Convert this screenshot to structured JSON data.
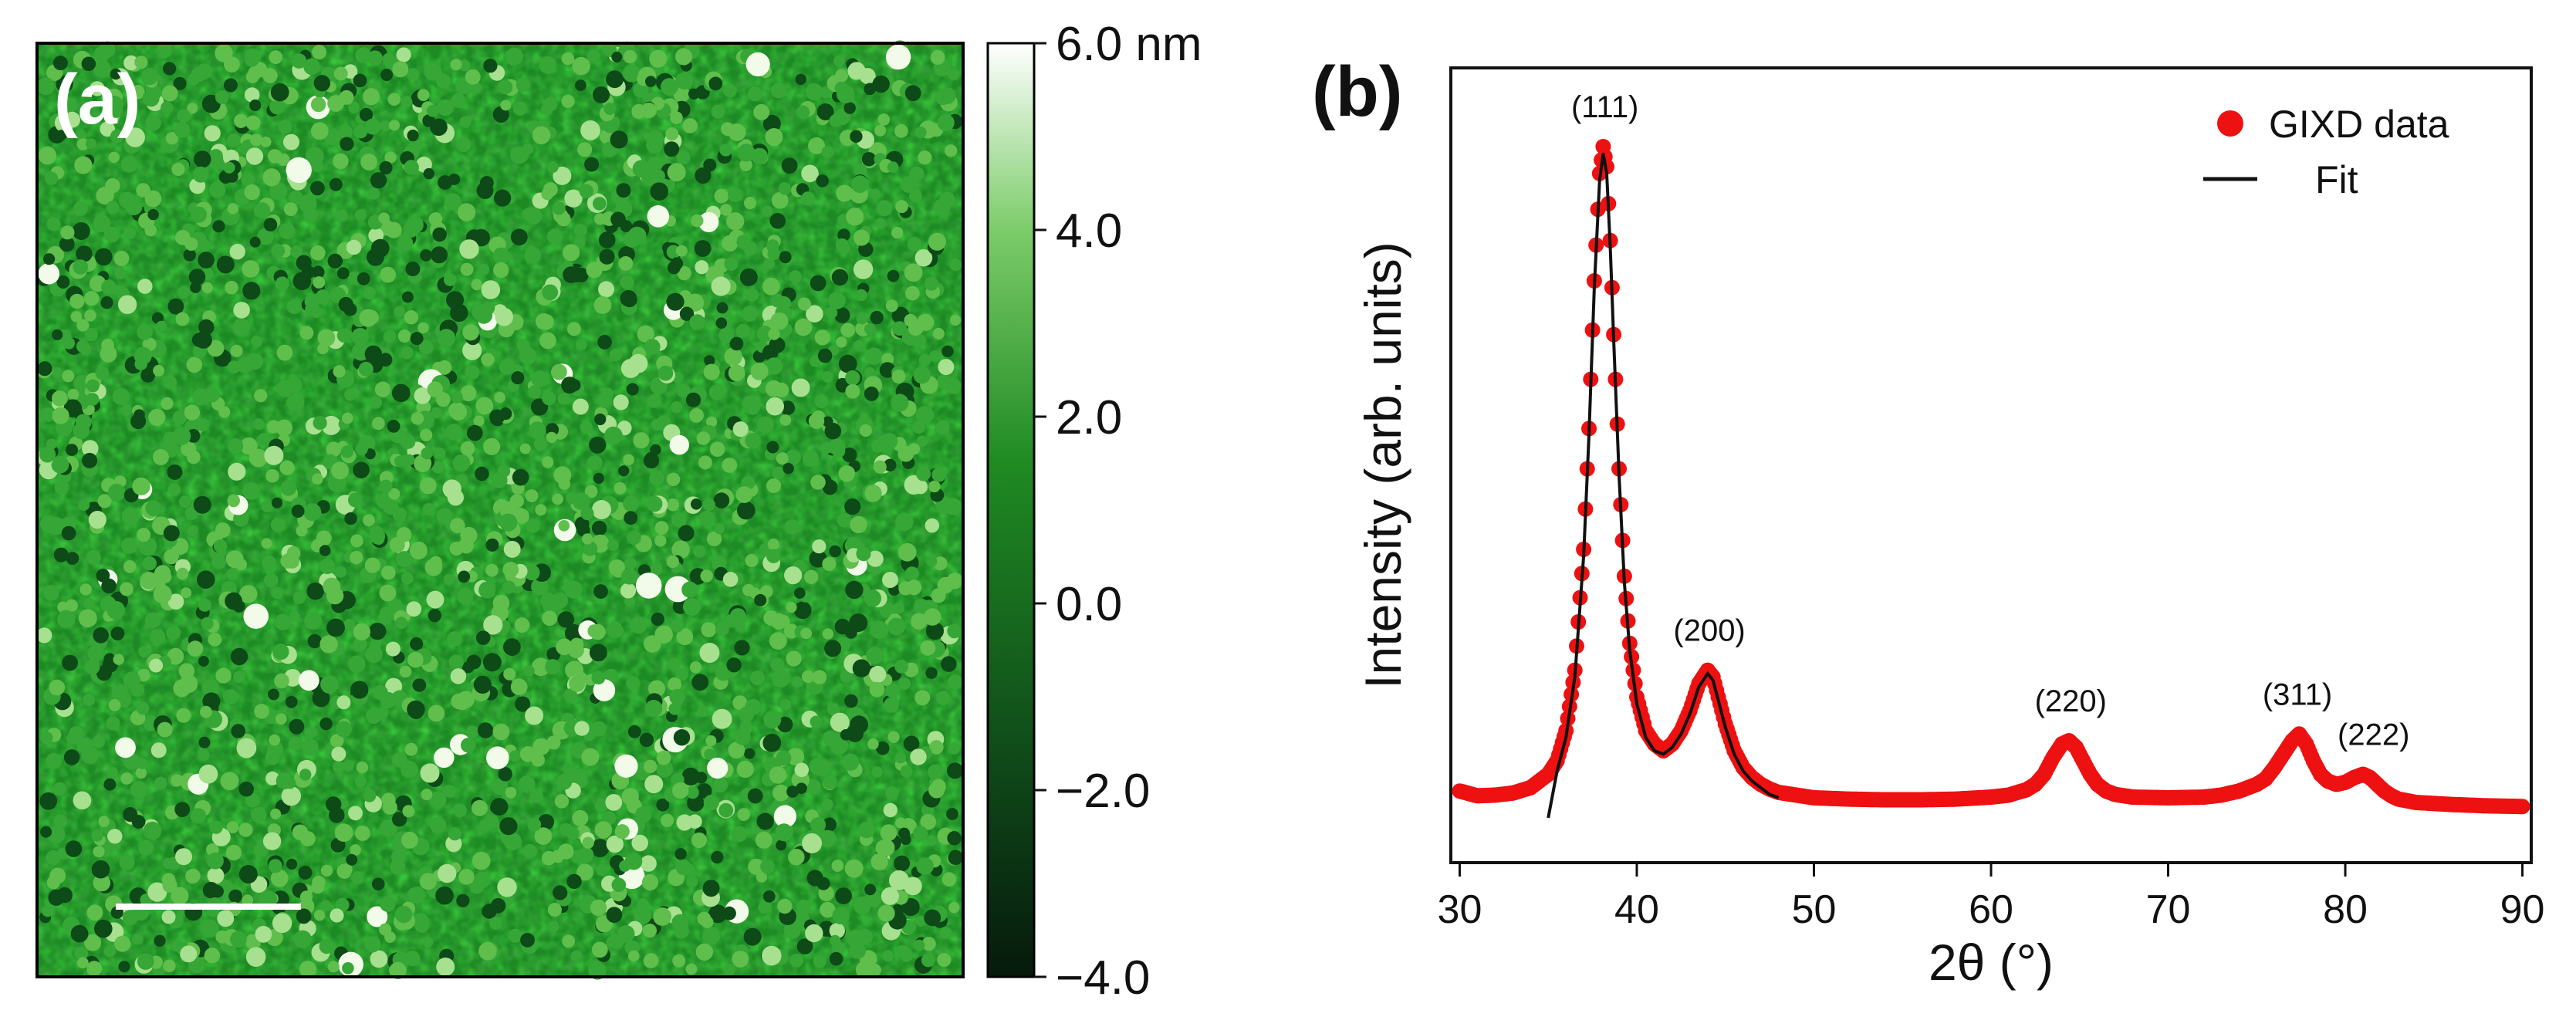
{
  "panel_a": {
    "label": "(a)",
    "image_kind": "AFM height map",
    "colorbar": {
      "unit_label": "6.0 nm",
      "ticks": [
        {
          "value": 6.0,
          "label": "6.0 nm"
        },
        {
          "value": 4.0,
          "label": "4.0"
        },
        {
          "value": 2.0,
          "label": "2.0"
        },
        {
          "value": 0.0,
          "label": "0.0"
        },
        {
          "value": -2.0,
          "label": "−2.0"
        },
        {
          "value": -4.0,
          "label": "−4.0"
        }
      ],
      "range": [
        -4.0,
        6.0
      ],
      "colors": {
        "low": "#061a0c",
        "mid": "#1f8a22",
        "high": "#ffffff"
      }
    }
  },
  "chart_data": {
    "type": "line",
    "panel_label": "(b)",
    "title": "",
    "xlabel": "2θ (°)",
    "ylabel": "Intensity (arb. units)",
    "xlim": [
      29.5,
      90.5
    ],
    "ylim": [
      0,
      1.06
    ],
    "xticks": [
      30,
      40,
      50,
      60,
      70,
      80,
      90
    ],
    "yticks_shown": false,
    "legend_position": "top-right",
    "legend": [
      "GIXD data",
      "Fit"
    ],
    "series": [
      {
        "name": "GIXD data",
        "style": "markers",
        "color": "#ee1111",
        "x": [
          30,
          31,
          32,
          33,
          34,
          35,
          35.5,
          36,
          36.5,
          37,
          37.3,
          37.6,
          37.9,
          38.1,
          38.3,
          38.5,
          38.7,
          39,
          39.3,
          39.6,
          40,
          40.5,
          41,
          41.5,
          42,
          42.5,
          43,
          43.5,
          44,
          44.3,
          44.6,
          45,
          45.5,
          46,
          46.5,
          47,
          47.5,
          48,
          49,
          50,
          52,
          54,
          56,
          58,
          60,
          61,
          62,
          62.5,
          63,
          63.5,
          64,
          64.4,
          64.8,
          65.2,
          65.6,
          66,
          66.5,
          67,
          68,
          70,
          72,
          73,
          74,
          75,
          75.5,
          76,
          76.5,
          77,
          77.4,
          77.8,
          78.2,
          78.6,
          79,
          79.5,
          80,
          80.5,
          81,
          81.4,
          81.8,
          82.2,
          82.6,
          83,
          84,
          86,
          88,
          90
        ],
        "y": [
          0.04,
          0.033,
          0.034,
          0.037,
          0.045,
          0.065,
          0.085,
          0.13,
          0.22,
          0.4,
          0.58,
          0.8,
          0.96,
          1.0,
          0.97,
          0.86,
          0.72,
          0.52,
          0.36,
          0.26,
          0.18,
          0.13,
          0.11,
          0.1,
          0.11,
          0.13,
          0.16,
          0.2,
          0.22,
          0.21,
          0.18,
          0.14,
          0.1,
          0.075,
          0.06,
          0.05,
          0.043,
          0.038,
          0.034,
          0.03,
          0.028,
          0.027,
          0.027,
          0.028,
          0.031,
          0.034,
          0.042,
          0.05,
          0.065,
          0.09,
          0.11,
          0.115,
          0.105,
          0.085,
          0.065,
          0.05,
          0.04,
          0.035,
          0.031,
          0.03,
          0.031,
          0.034,
          0.04,
          0.05,
          0.058,
          0.075,
          0.095,
          0.115,
          0.125,
          0.11,
          0.085,
          0.065,
          0.055,
          0.05,
          0.053,
          0.06,
          0.065,
          0.06,
          0.05,
          0.04,
          0.033,
          0.028,
          0.023,
          0.02,
          0.018,
          0.017
        ]
      },
      {
        "name": "Fit",
        "style": "line",
        "color": "#111111",
        "x": [
          35,
          35.5,
          36,
          36.5,
          37,
          37.3,
          37.6,
          37.9,
          38.1,
          38.3,
          38.5,
          38.7,
          39,
          39.3,
          39.6,
          40,
          40.5,
          41,
          41.5,
          42,
          42.5,
          43,
          43.5,
          44,
          44.3,
          44.6,
          45,
          45.5,
          46,
          46.5,
          47,
          47.5,
          48
        ],
        "y": [
          0.0,
          0.07,
          0.12,
          0.21,
          0.39,
          0.57,
          0.79,
          0.95,
          0.99,
          0.96,
          0.85,
          0.71,
          0.51,
          0.35,
          0.25,
          0.17,
          0.12,
          0.1,
          0.095,
          0.105,
          0.125,
          0.155,
          0.195,
          0.215,
          0.205,
          0.175,
          0.135,
          0.095,
          0.07,
          0.055,
          0.045,
          0.035,
          0.03
        ]
      }
    ],
    "annotations": [
      {
        "label": "(111)",
        "x": 38.2,
        "y": 1.0
      },
      {
        "label": "(200)",
        "x": 44.1,
        "y": 0.22
      },
      {
        "label": "(220)",
        "x": 64.5,
        "y": 0.115
      },
      {
        "label": "(311)",
        "x": 77.3,
        "y": 0.125
      },
      {
        "label": "(222)",
        "x": 81.6,
        "y": 0.065
      }
    ]
  }
}
